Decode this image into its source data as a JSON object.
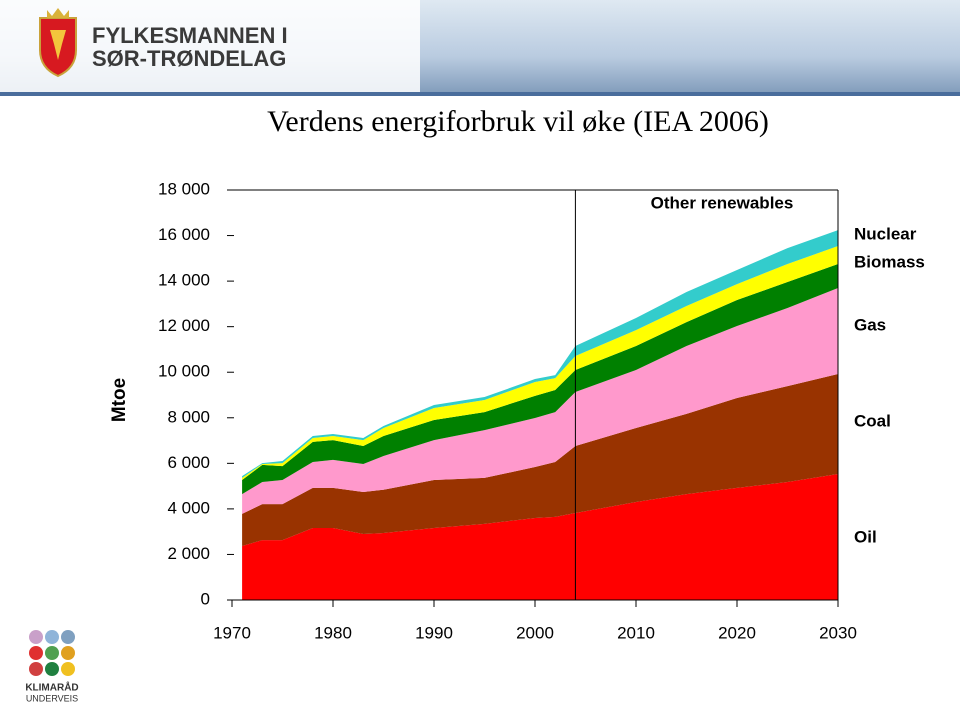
{
  "header": {
    "line1": "FYLKESMANNEN I",
    "line2": "SØR-TRØNDELAG"
  },
  "footer": {
    "line1": "KLIMARÅD",
    "line2": "UNDERVEIS"
  },
  "chart_data": {
    "type": "stacked-area",
    "title": "Verdens energiforbruk vil øke (IEA 2006)",
    "y_label": "Mtoe",
    "x": [
      1971,
      1973,
      1975,
      1978,
      1980,
      1983,
      1985,
      1990,
      1995,
      2000,
      2002,
      2004,
      2010,
      2015,
      2020,
      2025,
      2030
    ],
    "series": [
      {
        "name": "Oil",
        "color": "#ff0000",
        "values": [
          2370,
          2630,
          2630,
          3160,
          3160,
          2900,
          2940,
          3160,
          3340,
          3600,
          3650,
          3820,
          4300,
          4650,
          4920,
          5180,
          5530
        ]
      },
      {
        "name": "Coal",
        "color": "#993300",
        "values": [
          1410,
          1580,
          1580,
          1760,
          1760,
          1840,
          1900,
          2110,
          2020,
          2240,
          2410,
          2940,
          3250,
          3520,
          3950,
          4210,
          4390
        ]
      },
      {
        "name": "Gas",
        "color": "#ff99cc",
        "values": [
          870,
          970,
          1060,
          1140,
          1230,
          1230,
          1480,
          1750,
          2100,
          2150,
          2190,
          2370,
          2550,
          2980,
          3160,
          3430,
          3780
        ]
      },
      {
        "name": "Biomass",
        "color": "#008000",
        "values": [
          620,
          750,
          610,
          880,
          870,
          790,
          880,
          880,
          790,
          970,
          970,
          970,
          1050,
          1050,
          1140,
          1140,
          1050
        ]
      },
      {
        "name": "Nuclear",
        "color": "#ffff00",
        "values": [
          90,
          40,
          130,
          170,
          180,
          260,
          350,
          530,
          530,
          610,
          520,
          610,
          700,
          710,
          700,
          790,
          790
        ]
      },
      {
        "name": "Other renewables",
        "color": "#33cccc",
        "values": [
          80,
          40,
          90,
          90,
          90,
          90,
          90,
          130,
          130,
          130,
          130,
          440,
          530,
          610,
          620,
          700,
          700
        ]
      }
    ],
    "forecast_start": 2004,
    "xlim": [
      1970,
      2030
    ],
    "xticks": [
      1970,
      1980,
      1990,
      2000,
      2010,
      2020,
      2030
    ],
    "ylim": [
      0,
      18000
    ],
    "yticks": [
      0,
      {
        "value": 2000,
        "label": "2 000"
      },
      {
        "value": 4000,
        "label": "4 000"
      },
      {
        "value": 6000,
        "label": "6 000"
      },
      {
        "value": 8000,
        "label": "8 000"
      },
      {
        "value": 10000,
        "label": "10 000"
      },
      {
        "value": 12000,
        "label": "12 000"
      },
      {
        "value": 14000,
        "label": "14 000"
      },
      {
        "value": 16000,
        "label": "16 000"
      },
      {
        "value": 18000,
        "label": "18 000"
      }
    ]
  }
}
